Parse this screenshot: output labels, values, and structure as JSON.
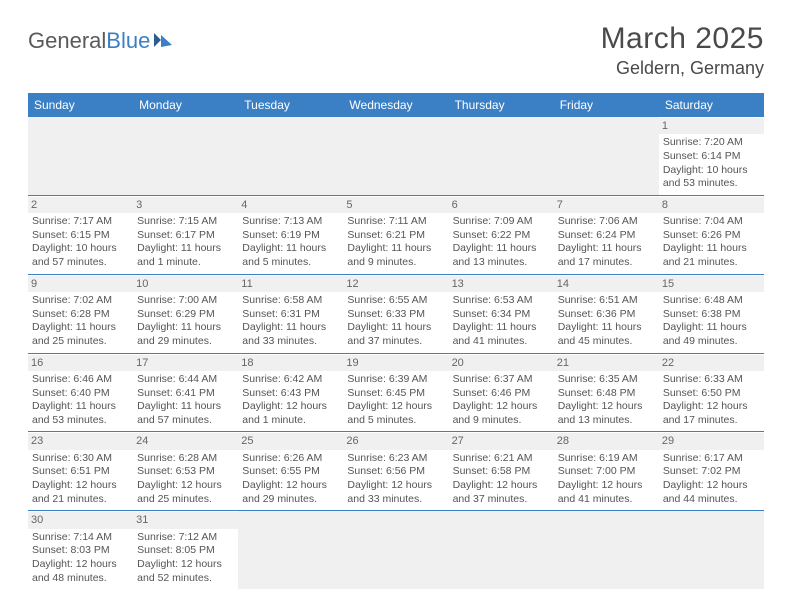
{
  "logo": {
    "text1": "General",
    "text2": "Blue"
  },
  "title": "March 2025",
  "location": "Geldern, Germany",
  "colors": {
    "header_bg": "#3b7fc4",
    "header_text": "#ffffff",
    "daynum_bg": "#f0f0f0",
    "border": "#3b7fc4",
    "text": "#555555"
  },
  "weekdays": [
    "Sunday",
    "Monday",
    "Tuesday",
    "Wednesday",
    "Thursday",
    "Friday",
    "Saturday"
  ],
  "weeks": [
    [
      null,
      null,
      null,
      null,
      null,
      null,
      {
        "n": "1",
        "sr": "Sunrise: 7:20 AM",
        "ss": "Sunset: 6:14 PM",
        "d1": "Daylight: 10 hours",
        "d2": "and 53 minutes."
      }
    ],
    [
      {
        "n": "2",
        "sr": "Sunrise: 7:17 AM",
        "ss": "Sunset: 6:15 PM",
        "d1": "Daylight: 10 hours",
        "d2": "and 57 minutes."
      },
      {
        "n": "3",
        "sr": "Sunrise: 7:15 AM",
        "ss": "Sunset: 6:17 PM",
        "d1": "Daylight: 11 hours",
        "d2": "and 1 minute."
      },
      {
        "n": "4",
        "sr": "Sunrise: 7:13 AM",
        "ss": "Sunset: 6:19 PM",
        "d1": "Daylight: 11 hours",
        "d2": "and 5 minutes."
      },
      {
        "n": "5",
        "sr": "Sunrise: 7:11 AM",
        "ss": "Sunset: 6:21 PM",
        "d1": "Daylight: 11 hours",
        "d2": "and 9 minutes."
      },
      {
        "n": "6",
        "sr": "Sunrise: 7:09 AM",
        "ss": "Sunset: 6:22 PM",
        "d1": "Daylight: 11 hours",
        "d2": "and 13 minutes."
      },
      {
        "n": "7",
        "sr": "Sunrise: 7:06 AM",
        "ss": "Sunset: 6:24 PM",
        "d1": "Daylight: 11 hours",
        "d2": "and 17 minutes."
      },
      {
        "n": "8",
        "sr": "Sunrise: 7:04 AM",
        "ss": "Sunset: 6:26 PM",
        "d1": "Daylight: 11 hours",
        "d2": "and 21 minutes."
      }
    ],
    [
      {
        "n": "9",
        "sr": "Sunrise: 7:02 AM",
        "ss": "Sunset: 6:28 PM",
        "d1": "Daylight: 11 hours",
        "d2": "and 25 minutes."
      },
      {
        "n": "10",
        "sr": "Sunrise: 7:00 AM",
        "ss": "Sunset: 6:29 PM",
        "d1": "Daylight: 11 hours",
        "d2": "and 29 minutes."
      },
      {
        "n": "11",
        "sr": "Sunrise: 6:58 AM",
        "ss": "Sunset: 6:31 PM",
        "d1": "Daylight: 11 hours",
        "d2": "and 33 minutes."
      },
      {
        "n": "12",
        "sr": "Sunrise: 6:55 AM",
        "ss": "Sunset: 6:33 PM",
        "d1": "Daylight: 11 hours",
        "d2": "and 37 minutes."
      },
      {
        "n": "13",
        "sr": "Sunrise: 6:53 AM",
        "ss": "Sunset: 6:34 PM",
        "d1": "Daylight: 11 hours",
        "d2": "and 41 minutes."
      },
      {
        "n": "14",
        "sr": "Sunrise: 6:51 AM",
        "ss": "Sunset: 6:36 PM",
        "d1": "Daylight: 11 hours",
        "d2": "and 45 minutes."
      },
      {
        "n": "15",
        "sr": "Sunrise: 6:48 AM",
        "ss": "Sunset: 6:38 PM",
        "d1": "Daylight: 11 hours",
        "d2": "and 49 minutes."
      }
    ],
    [
      {
        "n": "16",
        "sr": "Sunrise: 6:46 AM",
        "ss": "Sunset: 6:40 PM",
        "d1": "Daylight: 11 hours",
        "d2": "and 53 minutes."
      },
      {
        "n": "17",
        "sr": "Sunrise: 6:44 AM",
        "ss": "Sunset: 6:41 PM",
        "d1": "Daylight: 11 hours",
        "d2": "and 57 minutes."
      },
      {
        "n": "18",
        "sr": "Sunrise: 6:42 AM",
        "ss": "Sunset: 6:43 PM",
        "d1": "Daylight: 12 hours",
        "d2": "and 1 minute."
      },
      {
        "n": "19",
        "sr": "Sunrise: 6:39 AM",
        "ss": "Sunset: 6:45 PM",
        "d1": "Daylight: 12 hours",
        "d2": "and 5 minutes."
      },
      {
        "n": "20",
        "sr": "Sunrise: 6:37 AM",
        "ss": "Sunset: 6:46 PM",
        "d1": "Daylight: 12 hours",
        "d2": "and 9 minutes."
      },
      {
        "n": "21",
        "sr": "Sunrise: 6:35 AM",
        "ss": "Sunset: 6:48 PM",
        "d1": "Daylight: 12 hours",
        "d2": "and 13 minutes."
      },
      {
        "n": "22",
        "sr": "Sunrise: 6:33 AM",
        "ss": "Sunset: 6:50 PM",
        "d1": "Daylight: 12 hours",
        "d2": "and 17 minutes."
      }
    ],
    [
      {
        "n": "23",
        "sr": "Sunrise: 6:30 AM",
        "ss": "Sunset: 6:51 PM",
        "d1": "Daylight: 12 hours",
        "d2": "and 21 minutes."
      },
      {
        "n": "24",
        "sr": "Sunrise: 6:28 AM",
        "ss": "Sunset: 6:53 PM",
        "d1": "Daylight: 12 hours",
        "d2": "and 25 minutes."
      },
      {
        "n": "25",
        "sr": "Sunrise: 6:26 AM",
        "ss": "Sunset: 6:55 PM",
        "d1": "Daylight: 12 hours",
        "d2": "and 29 minutes."
      },
      {
        "n": "26",
        "sr": "Sunrise: 6:23 AM",
        "ss": "Sunset: 6:56 PM",
        "d1": "Daylight: 12 hours",
        "d2": "and 33 minutes."
      },
      {
        "n": "27",
        "sr": "Sunrise: 6:21 AM",
        "ss": "Sunset: 6:58 PM",
        "d1": "Daylight: 12 hours",
        "d2": "and 37 minutes."
      },
      {
        "n": "28",
        "sr": "Sunrise: 6:19 AM",
        "ss": "Sunset: 7:00 PM",
        "d1": "Daylight: 12 hours",
        "d2": "and 41 minutes."
      },
      {
        "n": "29",
        "sr": "Sunrise: 6:17 AM",
        "ss": "Sunset: 7:02 PM",
        "d1": "Daylight: 12 hours",
        "d2": "and 44 minutes."
      }
    ],
    [
      {
        "n": "30",
        "sr": "Sunrise: 7:14 AM",
        "ss": "Sunset: 8:03 PM",
        "d1": "Daylight: 12 hours",
        "d2": "and 48 minutes."
      },
      {
        "n": "31",
        "sr": "Sunrise: 7:12 AM",
        "ss": "Sunset: 8:05 PM",
        "d1": "Daylight: 12 hours",
        "d2": "and 52 minutes."
      },
      null,
      null,
      null,
      null,
      null
    ]
  ]
}
